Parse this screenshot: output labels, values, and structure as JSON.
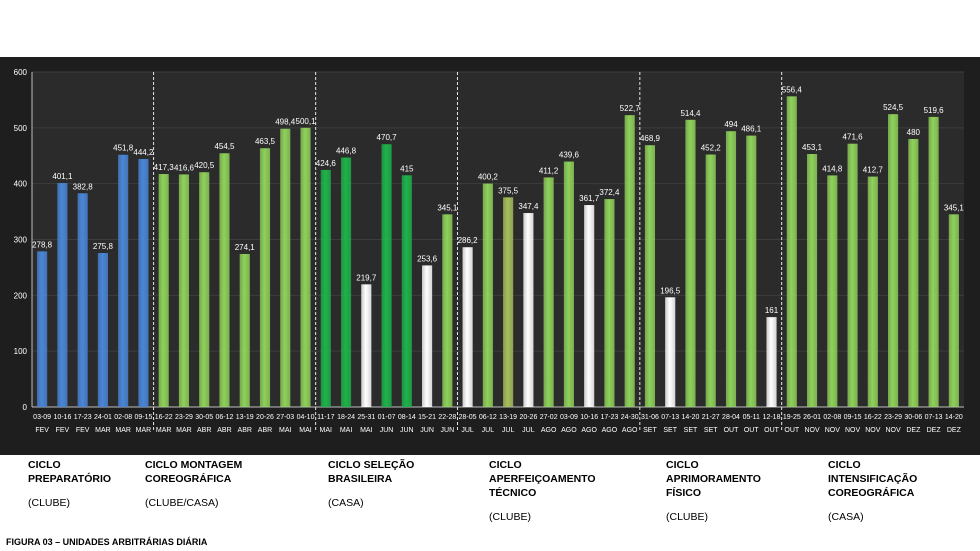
{
  "chart_data": {
    "type": "bar",
    "ylim": [
      0,
      600
    ],
    "yticks": [
      "0",
      "100",
      "200",
      "300",
      "400",
      "500",
      "600"
    ],
    "colors": {
      "background": "#2a2a2a",
      "blue": "#4a86d8",
      "light_green": "#8fd15a",
      "dark_green": "#1eb34a",
      "white": "#ffffff",
      "olive": "#a7bf5c"
    },
    "bars": [
      {
        "d": "03-09",
        "m": "FEV",
        "v": 278.8,
        "label": "278,8",
        "c": "blue"
      },
      {
        "d": "10-16",
        "m": "FEV",
        "v": 401.1,
        "label": "401,1",
        "c": "blue"
      },
      {
        "d": "17-23",
        "m": "FEV",
        "v": 382.8,
        "label": "382,8",
        "c": "blue"
      },
      {
        "d": "24-01",
        "m": "MAR",
        "v": 275.8,
        "label": "275,8",
        "c": "blue"
      },
      {
        "d": "02-08",
        "m": "MAR",
        "v": 451.8,
        "label": "451,8",
        "c": "blue"
      },
      {
        "d": "09-15",
        "m": "MAR",
        "v": 444.2,
        "label": "444,2",
        "c": "blue"
      },
      {
        "d": "16-22",
        "m": "MAR",
        "v": 417.3,
        "label": "417,3",
        "c": "light_green"
      },
      {
        "d": "23-29",
        "m": "MAR",
        "v": 416.6,
        "label": "416,6",
        "c": "light_green"
      },
      {
        "d": "30-05",
        "m": "ABR",
        "v": 420.5,
        "label": "420,5",
        "c": "light_green"
      },
      {
        "d": "06-12",
        "m": "ABR",
        "v": 454.5,
        "label": "454,5",
        "c": "light_green"
      },
      {
        "d": "13-19",
        "m": "ABR",
        "v": 274.1,
        "label": "274,1",
        "c": "light_green"
      },
      {
        "d": "20-26",
        "m": "ABR",
        "v": 463.5,
        "label": "463,5",
        "c": "light_green"
      },
      {
        "d": "27-03",
        "m": "MAI",
        "v": 498.4,
        "label": "498,4",
        "c": "light_green"
      },
      {
        "d": "04-10",
        "m": "MAI",
        "v": 500.1,
        "label": "500,1",
        "c": "light_green"
      },
      {
        "d": "11-17",
        "m": "MAI",
        "v": 424.6,
        "label": "424,6",
        "c": "dark_green"
      },
      {
        "d": "18-24",
        "m": "MAI",
        "v": 446.8,
        "label": "446,8",
        "c": "dark_green"
      },
      {
        "d": "25-31",
        "m": "MAI",
        "v": 219.7,
        "label": "219,7",
        "c": "white"
      },
      {
        "d": "01-07",
        "m": "JUN",
        "v": 470.7,
        "label": "470,7",
        "c": "dark_green"
      },
      {
        "d": "08-14",
        "m": "JUN",
        "v": 415,
        "label": "415",
        "c": "dark_green"
      },
      {
        "d": "15-21",
        "m": "JUN",
        "v": 253.6,
        "label": "253,6",
        "c": "white"
      },
      {
        "d": "22-28",
        "m": "JUN",
        "v": 345.1,
        "label": "345,1",
        "c": "light_green"
      },
      {
        "d": "28-05",
        "m": "JUL",
        "v": 286.2,
        "label": "286,2",
        "c": "white"
      },
      {
        "d": "06-12",
        "m": "JUL",
        "v": 400.2,
        "label": "400,2",
        "c": "light_green"
      },
      {
        "d": "13-19",
        "m": "JUL",
        "v": 375.5,
        "label": "375,5",
        "c": "olive"
      },
      {
        "d": "20-26",
        "m": "JUL",
        "v": 347.4,
        "label": "347,4",
        "c": "white"
      },
      {
        "d": "27-02",
        "m": "AGO",
        "v": 411.2,
        "label": "411,2",
        "c": "light_green"
      },
      {
        "d": "03-09",
        "m": "AGO",
        "v": 439.6,
        "label": "439,6",
        "c": "light_green"
      },
      {
        "d": "10-16",
        "m": "AGO",
        "v": 361.7,
        "label": "361,7",
        "c": "white"
      },
      {
        "d": "17-23",
        "m": "AGO",
        "v": 372.4,
        "label": "372,4",
        "c": "light_green"
      },
      {
        "d": "24-30",
        "m": "AGO",
        "v": 522.7,
        "label": "522,7",
        "c": "light_green"
      },
      {
        "d": "31-06",
        "m": "SET",
        "v": 468.9,
        "label": "468,9",
        "c": "light_green"
      },
      {
        "d": "07-13",
        "m": "SET",
        "v": 196.5,
        "label": "196,5",
        "c": "white"
      },
      {
        "d": "14-20",
        "m": "SET",
        "v": 514.4,
        "label": "514,4",
        "c": "light_green"
      },
      {
        "d": "21-27",
        "m": "SET",
        "v": 452.2,
        "label": "452,2",
        "c": "light_green"
      },
      {
        "d": "28-04",
        "m": "OUT",
        "v": 494,
        "label": "494",
        "c": "light_green"
      },
      {
        "d": "05-11",
        "m": "OUT",
        "v": 486.1,
        "label": "486,1",
        "c": "light_green"
      },
      {
        "d": "12-18",
        "m": "OUT",
        "v": 161,
        "label": "161",
        "c": "white"
      },
      {
        "d": "19-25",
        "m": "OUT",
        "v": 556.4,
        "label": "556,4",
        "c": "light_green"
      },
      {
        "d": "26-01",
        "m": "NOV",
        "v": 453.1,
        "label": "453,1",
        "c": "light_green"
      },
      {
        "d": "02-08",
        "m": "NOV",
        "v": 414.8,
        "label": "414,8",
        "c": "light_green"
      },
      {
        "d": "09-15",
        "m": "NOV",
        "v": 471.6,
        "label": "471,6",
        "c": "light_green"
      },
      {
        "d": "16-22",
        "m": "NOV",
        "v": 412.7,
        "label": "412,7",
        "c": "light_green"
      },
      {
        "d": "23-29",
        "m": "NOV",
        "v": 524.5,
        "label": "524,5",
        "c": "light_green"
      },
      {
        "d": "30-06",
        "m": "DEZ",
        "v": 480,
        "label": "480",
        "c": "light_green"
      },
      {
        "d": "07-13",
        "m": "DEZ",
        "v": 519.6,
        "label": "519,6",
        "c": "light_green"
      },
      {
        "d": "14-20",
        "m": "DEZ",
        "v": 345.1,
        "label": "345,1",
        "c": "light_green"
      }
    ],
    "dividers_after_bar_index": [
      5,
      13,
      20,
      29,
      36
    ]
  },
  "cycles": [
    {
      "name": "CICLO PREPARATÓRIO",
      "place": "(CLUBE)"
    },
    {
      "name": "CICLO MONTAGEM COREOGRÁFICA",
      "place": "(CLUBE/CASA)"
    },
    {
      "name": "CICLO SELEÇÃO BRASILEIRA",
      "place": "(CASA)"
    },
    {
      "name": "CICLO APERFEIÇOAMENTO TÉCNICO",
      "place": "(CLUBE)"
    },
    {
      "name": "CICLO APRIMORAMENTO FÍSICO",
      "place": "(CLUBE)"
    },
    {
      "name": "CICLO INTENSIFICAÇÃO COREOGRÁFICA",
      "place": "(CASA)"
    }
  ],
  "caption": "FIGURA 03 – UNIDADES ARBITRÁRIAS DIÁRIA"
}
